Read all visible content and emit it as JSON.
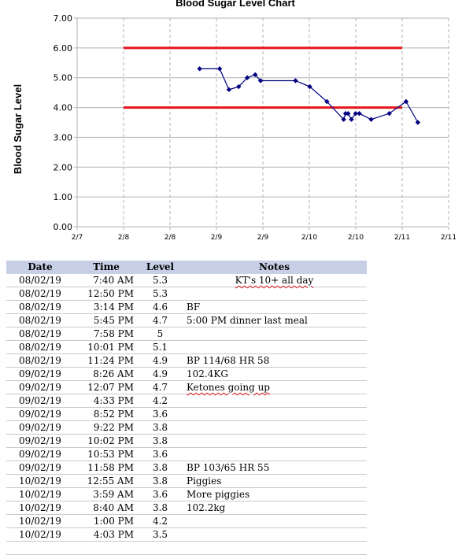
{
  "chart_data": {
    "type": "line",
    "title": "Blood Sugar Level Chart",
    "ylabel": "Blood Sugar Level",
    "xlabel": "",
    "ylim": [
      0,
      7
    ],
    "yticks": [
      "0.00",
      "1.00",
      "2.00",
      "3.00",
      "4.00",
      "5.00",
      "6.00",
      "7.00"
    ],
    "xticks": [
      "2/7",
      "2/8",
      "2/8",
      "2/9",
      "2/9",
      "2/10",
      "2/10",
      "2/11",
      "2/11"
    ],
    "grid": "vertical dashed, horizontal solid",
    "reference_lines": [
      {
        "y": 6.0,
        "color": "#e8141c"
      },
      {
        "y": 4.0,
        "color": "#e8141c"
      }
    ],
    "series": [
      {
        "color": "#000080",
        "x": [
          "08/02/19 7:40 AM",
          "08/02/19 12:50 PM",
          "08/02/19 3:14 PM",
          "08/02/19 5:45 PM",
          "08/02/19 7:58 PM",
          "08/02/19 10:01 PM",
          "08/02/19 11:24 PM",
          "09/02/19 8:26 AM",
          "09/02/19 12:07 PM",
          "09/02/19 4:33 PM",
          "09/02/19 8:52 PM",
          "09/02/19 9:22 PM",
          "09/02/19 10:02 PM",
          "09/02/19 10:53 PM",
          "09/02/19 11:58 PM",
          "10/02/19 12:55 AM",
          "10/02/19 3:59 AM",
          "10/02/19 8:40 AM",
          "10/02/19 1:00 PM",
          "10/02/19 4:03 PM"
        ],
        "values": [
          5.3,
          5.3,
          4.6,
          4.7,
          5,
          5.1,
          4.9,
          4.9,
          4.7,
          4.2,
          3.6,
          3.8,
          3.8,
          3.6,
          3.8,
          3.8,
          3.6,
          3.8,
          4.2,
          3.5
        ]
      }
    ]
  },
  "table": {
    "headers": {
      "date": "Date",
      "time": "Time",
      "level": "Level",
      "notes": "Notes"
    },
    "rows": [
      {
        "date": "08/02/19",
        "time": "7:40 AM",
        "level": "5.3",
        "notes": "KT's 10+ all day"
      },
      {
        "date": "08/02/19",
        "time": "12:50 PM",
        "level": "5.3",
        "notes": ""
      },
      {
        "date": "08/02/19",
        "time": "3:14 PM",
        "level": "4.6",
        "notes": "BF"
      },
      {
        "date": "08/02/19",
        "time": "5:45 PM",
        "level": "4.7",
        "notes": "5:00 PM dinner last meal"
      },
      {
        "date": "08/02/19",
        "time": "7:58 PM",
        "level": "5",
        "notes": ""
      },
      {
        "date": "08/02/19",
        "time": "10:01 PM",
        "level": "5.1",
        "notes": ""
      },
      {
        "date": "08/02/19",
        "time": "11:24 PM",
        "level": "4.9",
        "notes": "BP 114/68 HR 58"
      },
      {
        "date": "09/02/19",
        "time": "8:26 AM",
        "level": "4.9",
        "notes": "102.4KG"
      },
      {
        "date": "09/02/19",
        "time": "12:07 PM",
        "level": "4.7",
        "notes": "Ketones going up"
      },
      {
        "date": "09/02/19",
        "time": "4:33 PM",
        "level": "4.2",
        "notes": ""
      },
      {
        "date": "09/02/19",
        "time": "8:52 PM",
        "level": "3.6",
        "notes": ""
      },
      {
        "date": "09/02/19",
        "time": "9:22 PM",
        "level": "3.8",
        "notes": ""
      },
      {
        "date": "09/02/19",
        "time": "10:02 PM",
        "level": "3.8",
        "notes": ""
      },
      {
        "date": "09/02/19",
        "time": "10:53 PM",
        "level": "3.6",
        "notes": ""
      },
      {
        "date": "09/02/19",
        "time": "11:58 PM",
        "level": "3.8",
        "notes": "BP 103/65 HR 55"
      },
      {
        "date": "10/02/19",
        "time": "12:55 AM",
        "level": "3.8",
        "notes": "Piggies"
      },
      {
        "date": "10/02/19",
        "time": "3:59 AM",
        "level": "3.6",
        "notes": "More piggies"
      },
      {
        "date": "10/02/19",
        "time": "8:40 AM",
        "level": "3.8",
        "notes": "102.2kg"
      },
      {
        "date": "10/02/19",
        "time": "1:00 PM",
        "level": "4.2",
        "notes": ""
      },
      {
        "date": "10/02/19",
        "time": "4:03 PM",
        "level": "3.5",
        "notes": ""
      }
    ]
  }
}
